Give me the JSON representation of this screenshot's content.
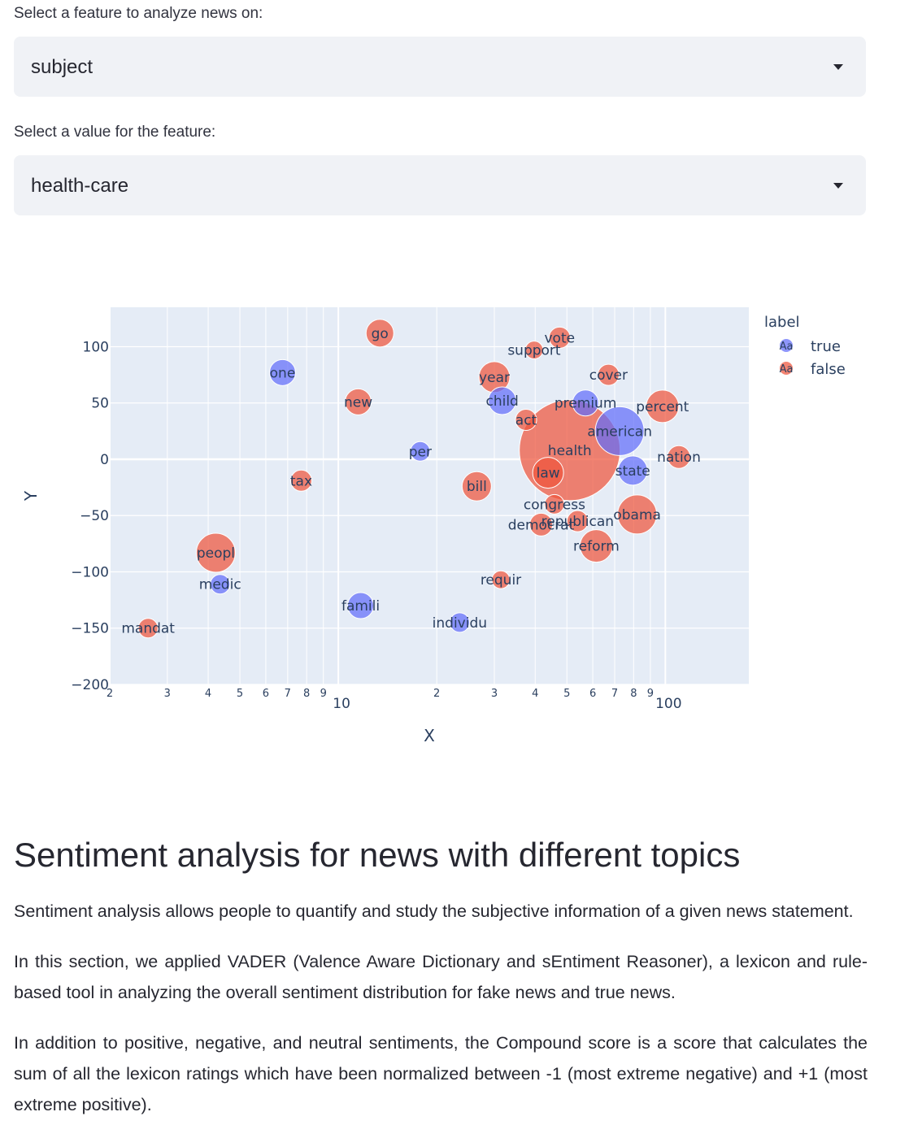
{
  "feature_select": {
    "label": "Select a feature to analyze news on:",
    "value": "subject"
  },
  "value_select": {
    "label": "Select a value for the feature:",
    "value": "health-care"
  },
  "legend": {
    "title": "label",
    "glyph": "Aa",
    "items": [
      {
        "name": "true",
        "color": "#636efa"
      },
      {
        "name": "false",
        "color": "#ef553b"
      }
    ]
  },
  "chart_data": {
    "type": "scatter",
    "xlabel": "X",
    "ylabel": "Y",
    "x_scale": "log",
    "xlim": [
      2,
      180
    ],
    "ylim": [
      -200,
      135
    ],
    "x_ticks": [
      {
        "v": 2,
        "t": "2",
        "major": true
      },
      {
        "v": 3,
        "t": "3"
      },
      {
        "v": 4,
        "t": "4"
      },
      {
        "v": 5,
        "t": "5"
      },
      {
        "v": 6,
        "t": "6"
      },
      {
        "v": 7,
        "t": "7"
      },
      {
        "v": 8,
        "t": "8"
      },
      {
        "v": 9,
        "t": "9"
      },
      {
        "v": 10,
        "t": "10",
        "major": true
      },
      {
        "v": 20,
        "t": "2"
      },
      {
        "v": 30,
        "t": "3"
      },
      {
        "v": 40,
        "t": "4"
      },
      {
        "v": 50,
        "t": "5"
      },
      {
        "v": 60,
        "t": "6"
      },
      {
        "v": 70,
        "t": "7"
      },
      {
        "v": 80,
        "t": "8"
      },
      {
        "v": 90,
        "t": "9"
      },
      {
        "v": 100,
        "t": "100",
        "major": true
      }
    ],
    "y_ticks": [
      {
        "v": 100,
        "t": "100"
      },
      {
        "v": 50,
        "t": "50"
      },
      {
        "v": 0,
        "t": "0"
      },
      {
        "v": -50,
        "t": "−50"
      },
      {
        "v": -100,
        "t": "−100"
      },
      {
        "v": -150,
        "t": "−150"
      },
      {
        "v": -200,
        "t": "−200"
      }
    ],
    "grid": true,
    "legend_position": "right",
    "series": [
      {
        "name": "true",
        "color": "#636efa",
        "points": [
          {
            "x": 6.75,
            "y": 77,
            "size": 16,
            "text": "one"
          },
          {
            "x": 4.35,
            "y": -111,
            "size": 12,
            "text": "medic"
          },
          {
            "x": 17.8,
            "y": 7,
            "size": 12,
            "text": "per"
          },
          {
            "x": 11.7,
            "y": -130,
            "size": 16,
            "text": "famili"
          },
          {
            "x": 23.5,
            "y": -145,
            "size": 12,
            "text": "individu"
          },
          {
            "x": 31.7,
            "y": 52,
            "size": 17,
            "text": "child"
          },
          {
            "x": 57,
            "y": 50,
            "size": 16,
            "text": "premium"
          },
          {
            "x": 72.5,
            "y": 25,
            "size": 30,
            "text": "american"
          },
          {
            "x": 79.5,
            "y": -10,
            "size": 18,
            "text": "state"
          }
        ]
      },
      {
        "name": "false",
        "color": "#ef553b",
        "points": [
          {
            "x": 2.62,
            "y": -150,
            "size": 12,
            "text": "mandat"
          },
          {
            "x": 4.22,
            "y": -83,
            "size": 24,
            "text": "peopl"
          },
          {
            "x": 7.7,
            "y": -19,
            "size": 13,
            "text": "tax"
          },
          {
            "x": 11.5,
            "y": 51,
            "size": 16,
            "text": "new"
          },
          {
            "x": 13.4,
            "y": 112,
            "size": 17,
            "text": "go"
          },
          {
            "x": 26.5,
            "y": -24,
            "size": 18,
            "text": "bill"
          },
          {
            "x": 30,
            "y": 73,
            "size": 19,
            "text": "year"
          },
          {
            "x": 31.4,
            "y": -107,
            "size": 11,
            "text": "requir"
          },
          {
            "x": 37.5,
            "y": 35,
            "size": 13,
            "text": "act"
          },
          {
            "x": 39.7,
            "y": 97,
            "size": 11,
            "text": "support"
          },
          {
            "x": 47.5,
            "y": 108,
            "size": 13,
            "text": "vote"
          },
          {
            "x": 67,
            "y": 75,
            "size": 13,
            "text": "cover"
          },
          {
            "x": 98,
            "y": 47,
            "size": 20,
            "text": "percent"
          },
          {
            "x": 110,
            "y": 2,
            "size": 14,
            "text": "nation"
          },
          {
            "x": 51,
            "y": 8,
            "size": 62,
            "text": "health"
          },
          {
            "x": 43.8,
            "y": -12,
            "size": 19,
            "text": "law"
          },
          {
            "x": 45.8,
            "y": -40,
            "size": 12,
            "text": "congress"
          },
          {
            "x": 41.7,
            "y": -58,
            "size": 14,
            "text": "democrat"
          },
          {
            "x": 53.9,
            "y": -55,
            "size": 13,
            "text": "republican"
          },
          {
            "x": 82,
            "y": -49,
            "size": 24,
            "text": "obama"
          },
          {
            "x": 61.5,
            "y": -77,
            "size": 20,
            "text": "reform"
          }
        ]
      }
    ]
  },
  "section": {
    "title": "Sentiment analysis for news with different topics",
    "p1": "Sentiment analysis allows people to quantify and study the subjective information of a given news statement.",
    "p2": "In this section, we applied VADER (Valence Aware Dictionary and sEntiment Reasoner), a lexicon and rule-based tool in analyzing the overall sentiment distribution for fake news and true news.",
    "p3": "In addition to positive, negative, and neutral sentiments, the Compound score is a score that calculates the sum of all the lexicon ratings which have been normalized between -1 (most extreme negative) and +1 (most extreme positive)."
  }
}
